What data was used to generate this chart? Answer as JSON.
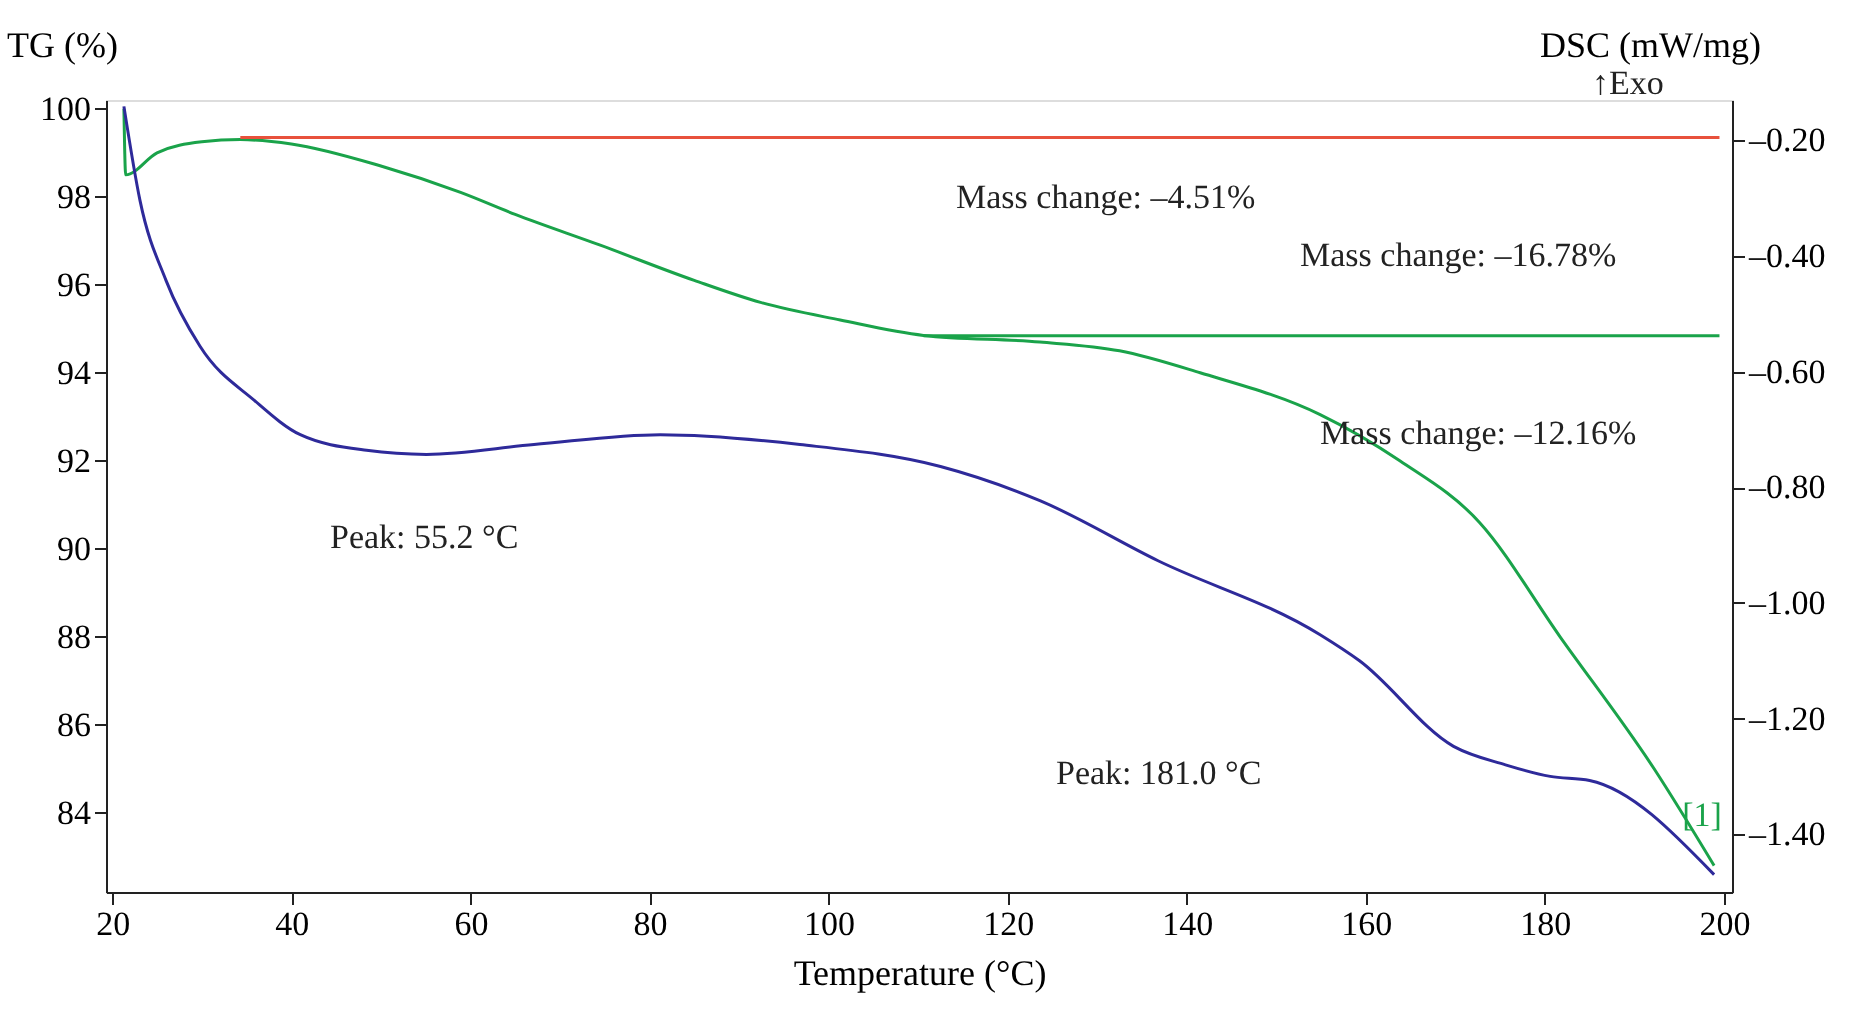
{
  "chart_data": {
    "type": "line",
    "xlabel": "Temperature (°C)",
    "ylabel": "TG (%)",
    "y2label": "DSC (mW/mg)",
    "xlim": [
      19.3,
      200.9
    ],
    "xticks": [
      20,
      40,
      60,
      80,
      100,
      120,
      140,
      160,
      180,
      200
    ],
    "ylim": [
      82.2,
      100.2
    ],
    "yticks": [
      84,
      86,
      88,
      90,
      92,
      94,
      96,
      98,
      100
    ],
    "y2lim": [
      -1.5,
      -0.13
    ],
    "y2ticks": [
      {
        "value": -0.2,
        "label": "–0.20"
      },
      {
        "value": -0.4,
        "label": "–0.40"
      },
      {
        "value": -0.6,
        "label": "–0.60"
      },
      {
        "value": -0.8,
        "label": "–0.80"
      },
      {
        "value": -1.0,
        "label": "–1.00"
      },
      {
        "value": -1.2,
        "label": "–1.20"
      },
      {
        "value": -1.4,
        "label": "–1.40"
      }
    ],
    "grid": false,
    "line_style": "solid",
    "series": [
      {
        "color": "#1aa34a",
        "x": [
          21.3,
          21.5,
          25,
          30,
          34.3,
          40,
          50,
          58.9,
          65,
          74.5,
          85,
          92.4,
          101.3,
          110.6,
          123.6,
          132.5,
          141.5,
          154.9,
          163.8,
          172.7,
          181.7,
          192.2,
          198.9
        ],
        "values": [
          100,
          98.5,
          99.0,
          99.25,
          99.3,
          99.2,
          98.7,
          98.1,
          97.6,
          96.9,
          96.1,
          95.6,
          95.2,
          94.85,
          94.7,
          94.5,
          94.0,
          93.05,
          92.0,
          90.6,
          88.0,
          85.0,
          82.8
        ]
      },
      {
        "color": "#e8513c",
        "x": [
          34.3,
          199.5
        ],
        "values": [
          99.35,
          99.35
        ]
      },
      {
        "color": "#1aa34a",
        "x": [
          110.6,
          199.5
        ],
        "values": [
          94.84,
          94.84
        ]
      },
      {
        "color": "#2e2a9a",
        "axis": "y2",
        "x": [
          21.3,
          23.1,
          26.0,
          29.8,
          35.9,
          41.0,
          48.4,
          55.1,
          67.1,
          81.2,
          96.8,
          112.5,
          123.6,
          136.8,
          154.9,
          159.3,
          169.8,
          175.6,
          180.6,
          185.0,
          198.9
        ],
        "values": [
          -0.141,
          -0.304,
          -0.442,
          -0.556,
          -0.65,
          -0.709,
          -0.736,
          -0.743,
          -0.726,
          -0.709,
          -0.726,
          -0.764,
          -0.823,
          -0.927,
          -1.055,
          -1.1,
          -1.248,
          -1.28,
          -1.3,
          -1.307,
          -1.47
        ]
      }
    ],
    "annotations": [
      "↑Exo",
      "Mass change: –4.51%",
      "Mass change: –16.78%",
      "Mass change: –12.16%",
      "Peak: 55.2 °C",
      "Peak: 181.0 °C",
      "[1]"
    ]
  }
}
